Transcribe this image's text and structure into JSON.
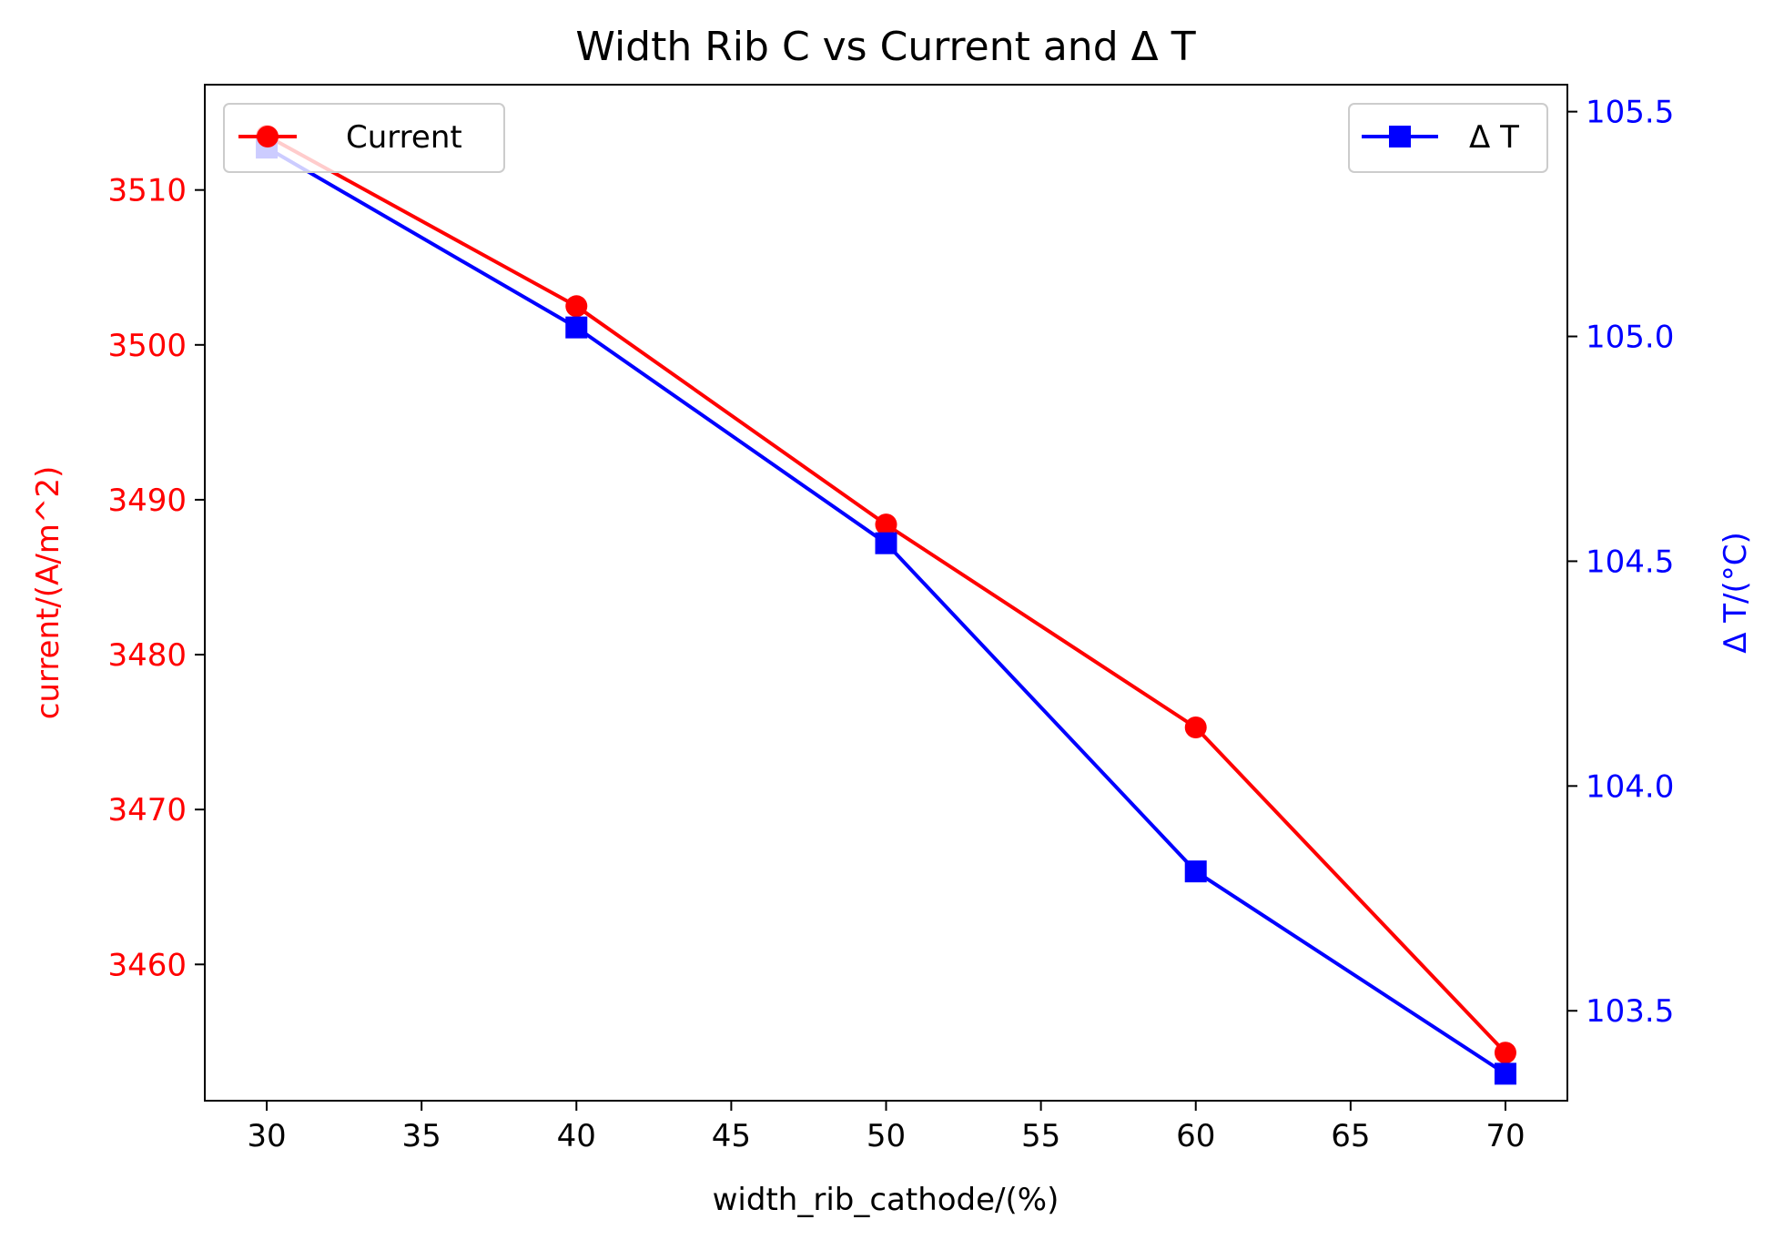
{
  "chart_data": {
    "type": "line",
    "title": "Width Rib C vs Current and Δ T",
    "xlabel": "width_rib_cathode/(%)",
    "x": [
      30,
      40,
      50,
      60,
      70
    ],
    "xlim": [
      28,
      72
    ],
    "xticks": [
      30,
      35,
      40,
      45,
      50,
      55,
      60,
      65,
      70
    ],
    "grid": false,
    "y_left": {
      "label": "current/(A/m^2)",
      "color": "#ff0000",
      "lim": [
        3451.2,
        3516.8
      ],
      "ticks": [
        3460,
        3470,
        3480,
        3490,
        3500,
        3510
      ]
    },
    "y_right": {
      "label": "Δ T/(°C)",
      "color": "#0000ff",
      "lim": [
        103.3,
        105.56
      ],
      "ticks": [
        103.5,
        104.0,
        104.5,
        105.0,
        105.5
      ],
      "tick_labels": [
        "103.5",
        "104.0",
        "104.5",
        "105.0",
        "105.5"
      ]
    },
    "series": [
      {
        "name": "Current",
        "axis": "left",
        "color": "#ff0000",
        "marker": "circle",
        "values": [
          3513.5,
          3502.5,
          3488.4,
          3475.3,
          3454.3
        ],
        "legend_position": "upper left"
      },
      {
        "name": "Δ T",
        "axis": "right",
        "color": "#0000ff",
        "marker": "square",
        "values": [
          105.42,
          105.02,
          104.54,
          103.81,
          103.36
        ],
        "legend_position": "upper right"
      }
    ]
  }
}
